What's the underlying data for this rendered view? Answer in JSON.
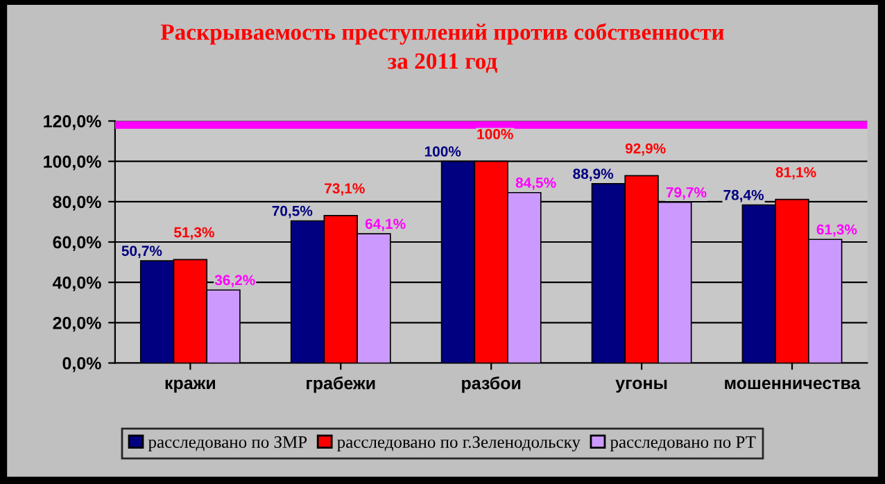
{
  "chart_data": {
    "type": "bar",
    "title": "Раскрываемость преступлений против собственности\nза 2011 год",
    "categories": [
      "кражи",
      "грабежи",
      "разбои",
      "угоны",
      "мошенничества"
    ],
    "series": [
      {
        "name": "расследовано по ЗМР",
        "color": "#000080",
        "values": [
          50.7,
          70.5,
          100,
          88.9,
          78.4
        ],
        "value_labels": [
          "50,7%",
          "70,5%",
          "100%",
          "88,9%",
          "78,4%"
        ]
      },
      {
        "name": "расследовано по г.Зеленодольску",
        "color": "#ff0000",
        "values": [
          51.3,
          73.1,
          100,
          92.9,
          81.1
        ],
        "value_labels": [
          "51,3%",
          "73,1%",
          "100%",
          "92,9%",
          "81,1%"
        ]
      },
      {
        "name": "расследовано по РТ",
        "color": "#cc99ff",
        "values": [
          36.2,
          64.1,
          84.5,
          79.7,
          61.3
        ],
        "value_labels": [
          "36,2%",
          "64,1%",
          "84,5%",
          "79,7%",
          "61,3%"
        ]
      }
    ],
    "ylim": [
      0,
      120
    ],
    "yticks": [
      {
        "value": 0,
        "label": "0,0%"
      },
      {
        "value": 20,
        "label": "20,0%"
      },
      {
        "value": 40,
        "label": "40,0%"
      },
      {
        "value": 60,
        "label": "60,0%"
      },
      {
        "value": 80,
        "label": "80,0%"
      },
      {
        "value": 100,
        "label": "100,0%"
      },
      {
        "value": 120,
        "label": "120,0%"
      }
    ],
    "ref_lines": [
      {
        "axis": "y",
        "value": 118,
        "color": "#ff00ff"
      }
    ],
    "grid": "y",
    "legend": "bottom"
  }
}
